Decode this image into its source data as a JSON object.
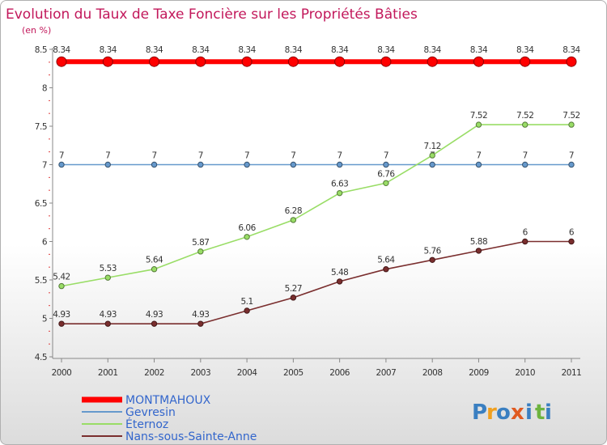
{
  "chart_data": {
    "type": "line",
    "title": "Evolution du Taux de Taxe Foncière sur les Propriétés Bâties",
    "subtitle": "(en %)",
    "x": [
      "2000",
      "2001",
      "2002",
      "2003",
      "2004",
      "2005",
      "2006",
      "2007",
      "2008",
      "2009",
      "2010",
      "2011"
    ],
    "y_ticks": [
      "4.5",
      "5",
      "5.5",
      "6",
      "6.5",
      "7",
      "7.5",
      "8",
      "8.5"
    ],
    "ylim": [
      4.5,
      8.5
    ],
    "series": [
      {
        "name": "MONTMAHOUX",
        "color": "#ff0000",
        "values": [
          8.34,
          8.34,
          8.34,
          8.34,
          8.34,
          8.34,
          8.34,
          8.34,
          8.34,
          8.34,
          8.34,
          8.34
        ],
        "labels": [
          "8.34",
          "8.34",
          "8.34",
          "8.34",
          "8.34",
          "8.34",
          "8.34",
          "8.34",
          "8.34",
          "8.34",
          "8.34",
          "8.34"
        ]
      },
      {
        "name": "Gevresin",
        "color": "#6699cc",
        "values": [
          7,
          7,
          7,
          7,
          7,
          7,
          7,
          7,
          7,
          7,
          7,
          7
        ],
        "labels": [
          "7",
          "7",
          "7",
          "7",
          "7",
          "7",
          "7",
          "7",
          "7",
          "7",
          "7",
          "7"
        ]
      },
      {
        "name": "Éternoz",
        "color": "#99dd66",
        "values": [
          5.42,
          5.53,
          5.64,
          5.87,
          6.06,
          6.28,
          6.63,
          6.76,
          7.12,
          7.52,
          7.52,
          7.52
        ],
        "labels": [
          "5.42",
          "5.53",
          "5.64",
          "5.87",
          "6.06",
          "6.28",
          "6.63",
          "6.76",
          "7.12",
          "7.52",
          "7.52",
          "7.52"
        ]
      },
      {
        "name": "Nans-sous-Sainte-Anne",
        "color": "#7a2e2e",
        "values": [
          4.93,
          4.93,
          4.93,
          4.93,
          5.1,
          5.27,
          5.48,
          5.64,
          5.76,
          5.88,
          6,
          6
        ],
        "labels": [
          "4.93",
          "4.93",
          "4.93",
          "4.93",
          "5.1",
          "5.27",
          "5.48",
          "5.64",
          "5.76",
          "5.88",
          "6",
          "6"
        ]
      }
    ],
    "grid": false,
    "legend_position": "bottom-left"
  },
  "legend_text_color": "#3366cc",
  "logo": {
    "letters": [
      "P",
      "r",
      "o",
      "x",
      "i",
      "t",
      "i"
    ]
  }
}
